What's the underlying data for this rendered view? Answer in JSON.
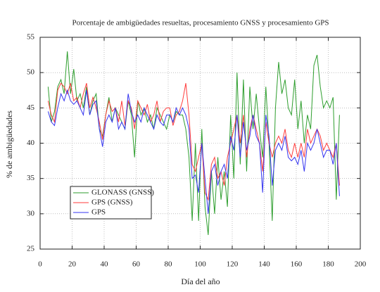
{
  "chart_data": {
    "type": "line",
    "title": "Porcentaje de ambigüedades resueltas, procesamiento GNSS y procesamiento GPS",
    "x_label": "Día del año",
    "y_label": "% de ambigüedades",
    "x": [
      5,
      7,
      9,
      11,
      13,
      15,
      17,
      19,
      21,
      23,
      25,
      27,
      29,
      31,
      33,
      35,
      37,
      39,
      41,
      43,
      45,
      47,
      49,
      51,
      53,
      55,
      57,
      59,
      61,
      63,
      65,
      67,
      69,
      71,
      73,
      75,
      77,
      79,
      81,
      83,
      85,
      87,
      89,
      91,
      93,
      95,
      97,
      99,
      101,
      103,
      105,
      107,
      109,
      111,
      113,
      115,
      117,
      119,
      121,
      123,
      125,
      127,
      129,
      131,
      133,
      135,
      137,
      139,
      141,
      143,
      145,
      147,
      149,
      151,
      153,
      155,
      157,
      159,
      161,
      163,
      165,
      167,
      169,
      171,
      173,
      175,
      177,
      179,
      181,
      183,
      185,
      187
    ],
    "series": [
      {
        "name": "GLONASS (GNSS)",
        "color": "#2e9e2e",
        "values": [
          48,
          43,
          44.5,
          48,
          49,
          47,
          53,
          47,
          50.5,
          46,
          47,
          45,
          48,
          44,
          46,
          47,
          42,
          41,
          44,
          46.5,
          43,
          45,
          44,
          43,
          42,
          46,
          44,
          38,
          46,
          44,
          45,
          43,
          44,
          42,
          45,
          44,
          43,
          42,
          44,
          43,
          44.5,
          44,
          44,
          42,
          38,
          29,
          40,
          29,
          42,
          31,
          27,
          36,
          30,
          38,
          32,
          36,
          31,
          44,
          35,
          50,
          37,
          49,
          36,
          48,
          42,
          47,
          42,
          38,
          48,
          40,
          29,
          45,
          51.5,
          47,
          49,
          45,
          44,
          49,
          42,
          46,
          40,
          44,
          42,
          51,
          52.5,
          48,
          45,
          46,
          45,
          46.5,
          32,
          44
        ]
      },
      {
        "name": "GPS (GNSS)",
        "color": "#ff3b3b",
        "values": [
          46,
          44,
          43,
          47.5,
          48.5,
          48,
          47,
          48.5,
          46,
          46.5,
          45,
          47,
          48.5,
          45,
          46.5,
          45,
          43,
          40.5,
          44,
          46,
          44.5,
          45,
          43,
          46,
          42.5,
          46,
          45,
          42,
          46,
          45,
          44,
          45.5,
          43,
          44,
          46,
          43,
          44.5,
          45,
          45,
          42.5,
          44,
          44.5,
          46,
          48.5,
          44,
          37,
          36,
          38,
          40,
          33,
          32,
          37,
          38,
          35,
          36,
          34,
          38,
          40,
          42,
          44,
          40,
          44,
          38,
          42,
          44,
          42,
          40,
          36,
          43,
          40,
          38,
          40,
          41,
          40,
          42,
          39,
          38,
          40,
          38,
          40,
          38,
          42,
          40,
          41,
          42,
          41,
          39,
          40,
          39,
          38,
          40,
          34
        ]
      },
      {
        "name": "GPS",
        "color": "#3535f0",
        "values": [
          44.5,
          43,
          42.5,
          45,
          47,
          46,
          47.5,
          46,
          45.5,
          46,
          45,
          44,
          47.5,
          44,
          45.5,
          46,
          42,
          39.5,
          43,
          44,
          43,
          45,
          42,
          43,
          42,
          47,
          44.5,
          43,
          44,
          43,
          45,
          44,
          43,
          42,
          44,
          43,
          42.5,
          44,
          44,
          43,
          45,
          44,
          45,
          44,
          42,
          35,
          35.5,
          33,
          40,
          35,
          30,
          36,
          37,
          34,
          36,
          37,
          35,
          41,
          39,
          44,
          38,
          43,
          39,
          41,
          44,
          41,
          40,
          33,
          44,
          41,
          34,
          39,
          40,
          39,
          41,
          38,
          37.5,
          38,
          37,
          39,
          36,
          40,
          39,
          40,
          42,
          40,
          38,
          39,
          39,
          37,
          40,
          32.5
        ]
      }
    ],
    "xlim": [
      0,
      200
    ],
    "xticks": [
      0,
      20,
      40,
      60,
      80,
      100,
      120,
      140,
      160,
      180,
      200
    ],
    "ylim": [
      25,
      55
    ],
    "yticks": [
      25,
      30,
      35,
      40,
      45,
      50,
      55
    ],
    "grid": true,
    "legend": "lower left"
  }
}
